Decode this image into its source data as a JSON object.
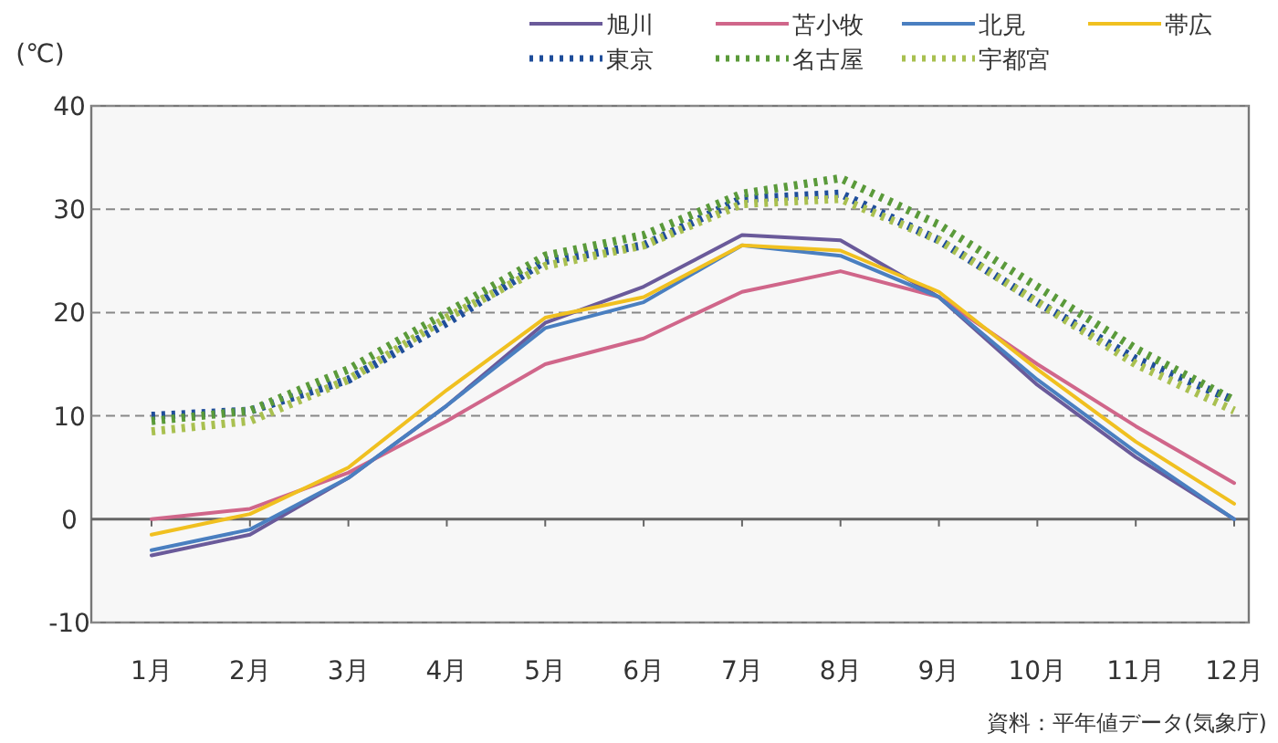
{
  "chart_data": {
    "type": "line",
    "ylabel": "(℃)",
    "categories": [
      "1月",
      "2月",
      "3月",
      "4月",
      "5月",
      "6月",
      "7月",
      "8月",
      "9月",
      "10月",
      "11月",
      "12月"
    ],
    "ylim": [
      -10,
      40
    ],
    "yticks": [
      -10,
      0,
      10,
      20,
      30,
      40
    ],
    "grid": "y",
    "legend": "top right",
    "series": [
      {
        "name": "旭川",
        "color": "#6a5a9a",
        "line_style": "solid",
        "values": [
          -3.5,
          -1.5,
          4,
          11,
          19,
          22.5,
          27.5,
          27,
          21.5,
          13,
          6,
          0
        ]
      },
      {
        "name": "苫小牧",
        "color": "#d0668a",
        "line_style": "solid",
        "values": [
          0,
          1,
          4.5,
          9.5,
          15,
          17.5,
          22,
          24,
          21.5,
          15,
          9,
          3.5
        ]
      },
      {
        "name": "北見",
        "color": "#4a7fc0",
        "line_style": "solid",
        "values": [
          -3,
          -1,
          4,
          11,
          18.5,
          21,
          26.5,
          25.5,
          21.5,
          13.5,
          6.5,
          0
        ]
      },
      {
        "name": "帯広",
        "color": "#f0c020",
        "line_style": "solid",
        "values": [
          -1.5,
          0.5,
          5,
          12.5,
          19.5,
          21.5,
          26.5,
          26,
          22,
          14.5,
          7.5,
          1.5
        ]
      },
      {
        "name": "東京",
        "color": "#1f4e9a",
        "line_style": "dotted",
        "values": [
          10,
          10.5,
          13.5,
          19,
          25,
          26.5,
          31,
          31.5,
          27,
          21,
          15.5,
          11.5
        ]
      },
      {
        "name": "名古屋",
        "color": "#5a9a3a",
        "line_style": "dotted",
        "values": [
          9.5,
          10.5,
          14.5,
          20,
          25.5,
          27.5,
          31.5,
          33,
          28.5,
          22.5,
          16.5,
          11.5
        ]
      },
      {
        "name": "宇都宮",
        "color": "#a9c050",
        "line_style": "dotted",
        "values": [
          8.5,
          9.5,
          13.5,
          19.5,
          24.5,
          26.5,
          30.5,
          31,
          27,
          21,
          15,
          10.5
        ]
      }
    ],
    "annotations": [
      "資料：平年値データ(気象庁)"
    ]
  }
}
